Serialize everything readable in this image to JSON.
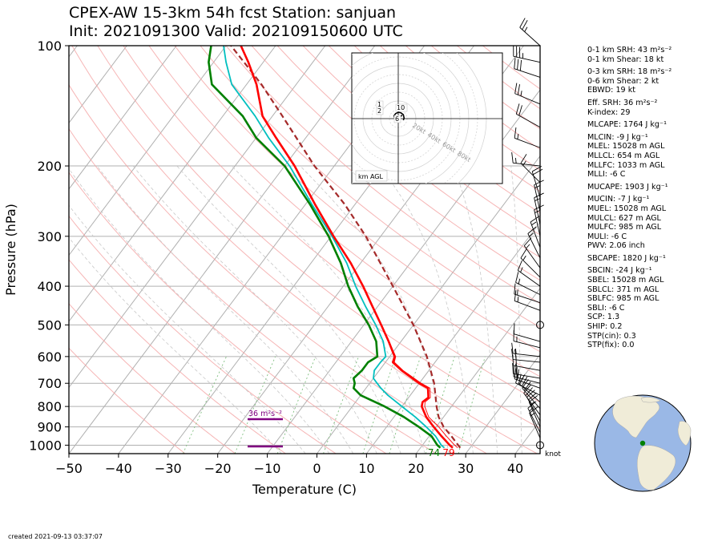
{
  "title": {
    "line1": "CPEX-AW 15-3km  54h fcst  Station: sanjuan",
    "line2": "Init: 2021091300  Valid: 202109150600 UTC"
  },
  "footer": {
    "created": "created 2021-09-13 03:37:07"
  },
  "colors": {
    "temperature": "#ff0000",
    "virtual_temperature": "#ff0000",
    "dewpoint": "#008000",
    "wetbulb": "#00bfbf",
    "parcel": "#a52a2a",
    "srh_bar": "#800080",
    "isotherm": "#b0b0b0",
    "dry_adiabat": "#f4a3a3",
    "moist_adiabat": "#c8c8c8",
    "mixing_ratio": "#7fbf7f",
    "globe_ocean": "#9ab8e6",
    "globe_land": "#f0ecd8"
  },
  "chart_data": {
    "type": "line",
    "subtype": "skew-t log-p",
    "xlabel": "Temperature (C)",
    "ylabel": "Pressure (hPa)",
    "xlim": [
      -50,
      45
    ],
    "ylim": [
      1050,
      100
    ],
    "y_scale": "log",
    "x_ticks": [
      -50,
      -40,
      -30,
      -20,
      -10,
      0,
      10,
      20,
      30,
      40
    ],
    "y_ticks": [
      100,
      200,
      300,
      400,
      500,
      600,
      700,
      800,
      900,
      1000
    ],
    "grid": true,
    "surface_labels": {
      "dewpoint": "74",
      "temperature": "79"
    },
    "wind_unit": "knot",
    "srh_annotation": "36 m²s⁻²",
    "series": [
      {
        "key": "temperature",
        "pressure": [
          1015,
          1000,
          950,
          900,
          850,
          800,
          780,
          760,
          720,
          700,
          650,
          620,
          600,
          550,
          500,
          450,
          400,
          350,
          300,
          250,
          200,
          170,
          150,
          125,
          110,
          100
        ],
        "values": [
          26.5,
          25.5,
          22.5,
          19.5,
          16.5,
          14.0,
          13.5,
          14.0,
          12.5,
          10.0,
          4.5,
          1.5,
          1.0,
          -2.5,
          -6.5,
          -11.0,
          -16.0,
          -22.0,
          -29.5,
          -38.0,
          -48.0,
          -56.0,
          -62.0,
          -68.0,
          -73.0,
          -77.0
        ]
      },
      {
        "key": "virtual_temperature",
        "pressure": [
          1015,
          1000,
          950,
          900,
          850,
          800,
          780,
          760,
          720,
          700,
          650,
          620,
          600,
          550,
          500
        ],
        "values": [
          27.5,
          26.5,
          23.5,
          20.5,
          17.0,
          14.6,
          14.0,
          14.4,
          12.9,
          10.4,
          4.8,
          1.8,
          1.2,
          -2.4,
          -6.4
        ]
      },
      {
        "key": "dewpoint",
        "pressure": [
          1015,
          1000,
          950,
          900,
          850,
          800,
          750,
          720,
          700,
          680,
          650,
          620,
          600,
          550,
          500,
          450,
          400,
          350,
          300,
          250,
          200,
          170,
          150,
          125,
          110,
          100
        ],
        "values": [
          24.0,
          23.0,
          20.5,
          16.5,
          12.0,
          6.5,
          0.0,
          -2.5,
          -3.0,
          -4.0,
          -3.5,
          -3.5,
          -2.5,
          -5.0,
          -9.0,
          -14.0,
          -19.0,
          -24.0,
          -30.5,
          -39.0,
          -50.0,
          -60.0,
          -66.0,
          -77.0,
          -81.0,
          -83.0
        ]
      },
      {
        "key": "wetbulb",
        "pressure": [
          1015,
          1000,
          950,
          900,
          850,
          800,
          750,
          720,
          700,
          680,
          650,
          620,
          600,
          550,
          500,
          450,
          400,
          350,
          300,
          250,
          200,
          170,
          150,
          125,
          110,
          100
        ],
        "values": [
          24.8,
          23.8,
          21.3,
          18.0,
          14.3,
          10.0,
          5.5,
          3.0,
          1.5,
          0.0,
          -1.0,
          -1.0,
          -0.8,
          -3.6,
          -7.6,
          -12.4,
          -17.5,
          -22.8,
          -29.8,
          -38.6,
          -49.0,
          -57.5,
          -63.5,
          -73.0,
          -77.5,
          -80.5
        ]
      },
      {
        "key": "parcel",
        "pressure": [
          1015,
          950,
          900,
          850,
          800,
          700,
          600,
          500,
          400,
          300,
          250,
          200,
          150,
          125,
          100
        ],
        "values": [
          28.0,
          24.5,
          21.5,
          19.0,
          17.0,
          13.0,
          7.5,
          0.0,
          -10.0,
          -23.0,
          -32.0,
          -44.0,
          -58.0,
          -67.0,
          -79.0
        ]
      }
    ],
    "winds": [
      {
        "p": 1000,
        "u": 0,
        "v": 0,
        "calm": true
      },
      {
        "p": 960,
        "u": -3,
        "v": 7
      },
      {
        "p": 930,
        "u": -4,
        "v": 8
      },
      {
        "p": 900,
        "u": -4,
        "v": 9
      },
      {
        "p": 870,
        "u": -5,
        "v": 9
      },
      {
        "p": 840,
        "u": -6,
        "v": 8
      },
      {
        "p": 810,
        "u": -7,
        "v": 8
      },
      {
        "p": 780,
        "u": -8,
        "v": 7
      },
      {
        "p": 750,
        "u": -10,
        "v": 5
      },
      {
        "p": 720,
        "u": -11,
        "v": 4
      },
      {
        "p": 700,
        "u": -12,
        "v": 3
      },
      {
        "p": 680,
        "u": -12,
        "v": 2
      },
      {
        "p": 650,
        "u": -11,
        "v": 2
      },
      {
        "p": 620,
        "u": -10,
        "v": 1
      },
      {
        "p": 600,
        "u": -9,
        "v": 1
      },
      {
        "p": 570,
        "u": -8,
        "v": 2
      },
      {
        "p": 550,
        "u": -7,
        "v": 2
      },
      {
        "p": 500,
        "u": 0,
        "v": 0,
        "calm": true
      },
      {
        "p": 460,
        "u": -8,
        "v": 3
      },
      {
        "p": 440,
        "u": -9,
        "v": 3
      },
      {
        "p": 420,
        "u": -8,
        "v": 4
      },
      {
        "p": 400,
        "u": -7,
        "v": 5
      },
      {
        "p": 380,
        "u": -6,
        "v": 6
      },
      {
        "p": 360,
        "u": -5,
        "v": 7
      },
      {
        "p": 340,
        "u": -4,
        "v": 8
      },
      {
        "p": 320,
        "u": -3,
        "v": 8
      },
      {
        "p": 300,
        "u": -2,
        "v": 9
      },
      {
        "p": 280,
        "u": -2,
        "v": 9
      },
      {
        "p": 260,
        "u": -2,
        "v": 9
      },
      {
        "p": 240,
        "u": -3,
        "v": 10
      },
      {
        "p": 220,
        "u": -6,
        "v": 6
      },
      {
        "p": 200,
        "u": -9,
        "v": 1
      },
      {
        "p": 180,
        "u": -8,
        "v": 3
      },
      {
        "p": 160,
        "u": -9,
        "v": 5
      },
      {
        "p": 140,
        "u": -12,
        "v": 5
      },
      {
        "p": 120,
        "u": -15,
        "v": 5
      },
      {
        "p": 110,
        "u": -18,
        "v": 4
      },
      {
        "p": 100,
        "u": -10,
        "v": 9
      }
    ],
    "hodograph": {
      "u": [
        1.5,
        0.6,
        -0.7,
        -1.4,
        -1.6,
        -1.0,
        0.0,
        1.0,
        1.9,
        2.2,
        1.9
      ],
      "v": [
        1.2,
        0.8,
        0.2,
        0.3,
        1.1,
        1.9,
        2.4,
        2.2,
        1.5,
        0.2,
        -0.6
      ],
      "ring_labels": [
        "20kt",
        "40kt",
        "60kt",
        "80kt"
      ],
      "height_labels": [
        "1",
        "2",
        "10",
        "6"
      ],
      "unit_label": "km AGL"
    }
  },
  "indices": [
    {
      "label": "0-1 km SRH: 43 m²s⁻²"
    },
    {
      "label": "0-1 km Shear: 18 kt"
    },
    {
      "label": "0-3 km SRH: 18 m²s⁻²",
      "gap": true
    },
    {
      "label": "0-6 km Shear: 2 kt"
    },
    {
      "label": "EBWD: 19 kt"
    },
    {
      "label": "Eff. SRH: 36 m²s⁻²",
      "gap": true
    },
    {
      "label": "K-index: 29"
    },
    {
      "label": "MLCAPE: 1764 J kg⁻¹",
      "gap": true
    },
    {
      "label": "MLCIN: -9 J kg⁻¹",
      "gap": true
    },
    {
      "label": "MLEL: 15028 m AGL"
    },
    {
      "label": "MLLCL: 654 m AGL"
    },
    {
      "label": "MLLFC: 1033 m AGL"
    },
    {
      "label": "MLLI: -6 C"
    },
    {
      "label": "MUCAPE: 1903 J kg⁻¹",
      "gap": true
    },
    {
      "label": "MUCIN: -7 J kg⁻¹",
      "gap": true
    },
    {
      "label": "MUEL: 15028 m AGL"
    },
    {
      "label": "MULCL: 627 m AGL"
    },
    {
      "label": "MULFC: 985 m AGL"
    },
    {
      "label": "MULI: -6 C"
    },
    {
      "label": "PWV: 2.06 inch"
    },
    {
      "label": "SBCAPE: 1820 J kg⁻¹",
      "gap": true
    },
    {
      "label": "SBCIN: -24 J kg⁻¹",
      "gap": true
    },
    {
      "label": "SBEL: 15028 m AGL"
    },
    {
      "label": "SBLCL: 371 m AGL"
    },
    {
      "label": "SBLFC: 985 m AGL"
    },
    {
      "label": "SBLI: -6 C"
    },
    {
      "label": "SCP: 1.3"
    },
    {
      "label": "SHIP: 0.2"
    },
    {
      "label": "STP(cin): 0.3"
    },
    {
      "label": "STP(fix): 0.0"
    }
  ]
}
